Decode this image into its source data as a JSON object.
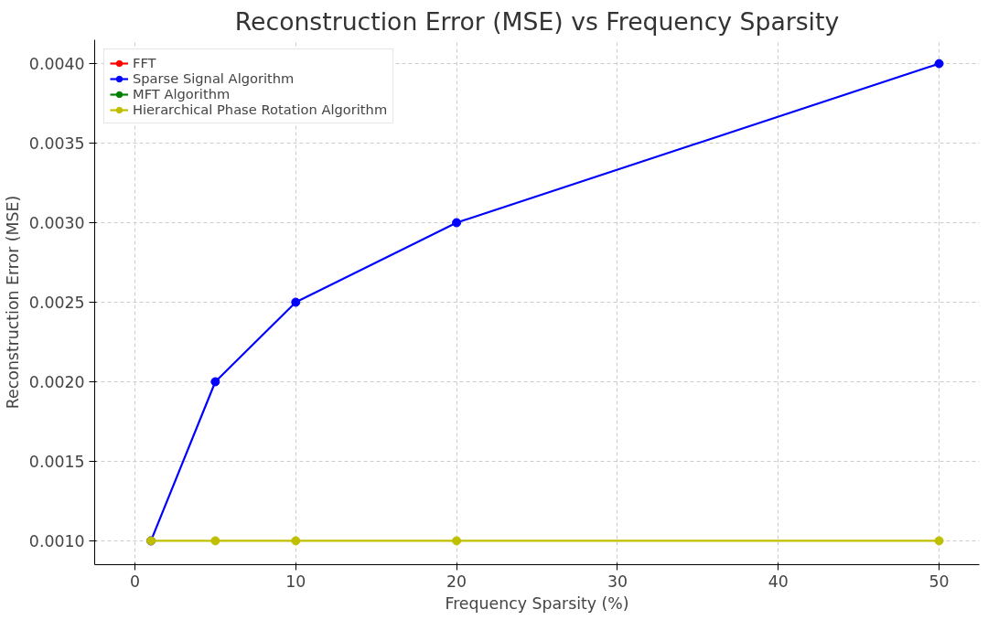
{
  "chart_data": {
    "type": "line",
    "title": "Reconstruction Error (MSE) vs Frequency Sparsity",
    "xlabel": "Frequency Sparsity (%)",
    "ylabel": "Reconstruction Error (MSE)",
    "x": [
      1,
      5,
      10,
      20,
      50
    ],
    "series": [
      {
        "name": "FFT",
        "color": "#ff0000",
        "values": [
          null,
          null,
          null,
          null,
          null
        ]
      },
      {
        "name": "Sparse Signal Algorithm",
        "color": "#0000ff",
        "values": [
          0.001,
          0.002,
          0.0025,
          0.003,
          0.004
        ]
      },
      {
        "name": "MFT Algorithm",
        "color": "#008000",
        "values": [
          null,
          null,
          null,
          null,
          null
        ]
      },
      {
        "name": "Hierarchical Phase Rotation Algorithm",
        "color": "#bfbf00",
        "values": [
          0.001,
          0.001,
          0.001,
          0.001,
          0.001
        ]
      }
    ],
    "xlim": [
      -2.5,
      52.5
    ],
    "xticks": [
      0,
      10,
      20,
      30,
      40,
      50
    ],
    "ylim": [
      0.00085,
      0.00415
    ],
    "yticks": [
      {
        "value": 0.001,
        "label": "0.0010"
      },
      {
        "value": 0.0015,
        "label": "0.0015"
      },
      {
        "value": 0.002,
        "label": "0.0020"
      },
      {
        "value": 0.0025,
        "label": "0.0025"
      },
      {
        "value": 0.003,
        "label": "0.0030"
      },
      {
        "value": 0.0035,
        "label": "0.0035"
      },
      {
        "value": 0.004,
        "label": "0.0040"
      }
    ],
    "grid": true,
    "legend": "top left",
    "marker": "circle",
    "line_style": "solid"
  }
}
